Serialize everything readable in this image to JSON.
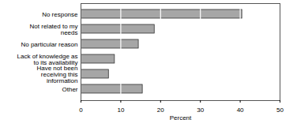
{
  "chart_data": {
    "type": "bar",
    "orientation": "horizontal",
    "categories": [
      "No response",
      "Not related to my needs",
      "No particular reason",
      "Lack of knowledge as to its availability",
      "Have not been receiving this information",
      "Other"
    ],
    "values": [
      40.5,
      18.5,
      14.5,
      8.5,
      7,
      15.5
    ],
    "color": "#a6a6a6",
    "x_label": "Percent",
    "xlim": [
      0,
      50
    ],
    "xticks": [
      0,
      10,
      20,
      30,
      40,
      50
    ],
    "grid": true
  }
}
